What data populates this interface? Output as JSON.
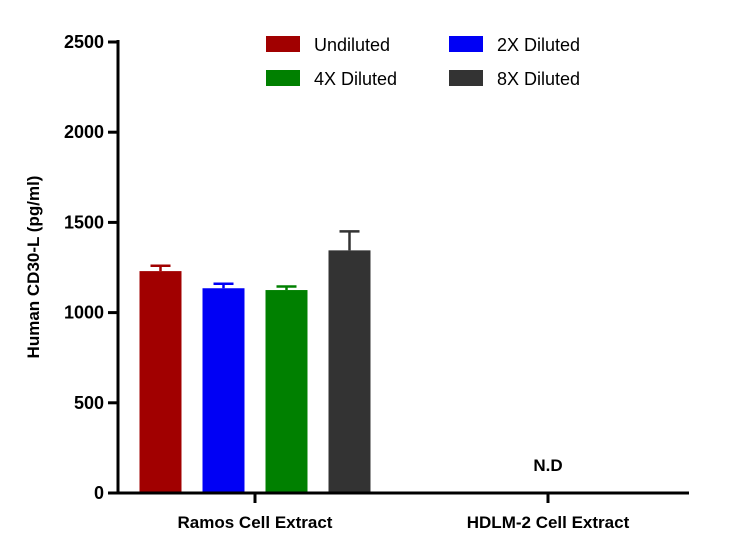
{
  "chart_data": {
    "type": "bar",
    "ylabel": "Human CD30-L (pg/ml)",
    "ylim": [
      0,
      2500
    ],
    "yticks": [
      0,
      500,
      1000,
      1500,
      2000,
      2500
    ],
    "categories": [
      "Ramos Cell Extract",
      "HDLM-2 Cell Extract"
    ],
    "series": [
      {
        "name": "Undiluted",
        "color": "#a10000",
        "values": [
          1230,
          null
        ],
        "errors": [
          30,
          null
        ]
      },
      {
        "name": "2X Diluted",
        "color": "#0000f5",
        "values": [
          1135,
          null
        ],
        "errors": [
          25,
          null
        ]
      },
      {
        "name": "4X Diluted",
        "color": "#008000",
        "values": [
          1125,
          null
        ],
        "errors": [
          20,
          null
        ]
      },
      {
        "name": "8X Diluted",
        "color": "#333333",
        "values": [
          1345,
          null
        ],
        "errors": [
          105,
          null
        ]
      }
    ],
    "annotations": [
      {
        "category": "HDLM-2 Cell Extract",
        "text": "N.D"
      }
    ],
    "legend_position": "top",
    "grid": false
  }
}
